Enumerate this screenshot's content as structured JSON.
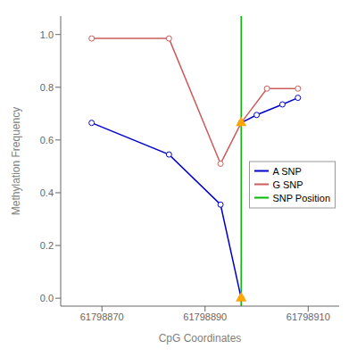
{
  "chart_data": {
    "type": "line",
    "xlabel": "CpG Coordinates",
    "ylabel": "Methylation Frequency",
    "series": [
      {
        "name": "A SNP",
        "color": "#0000CD",
        "marker": "circle",
        "segments": [
          {
            "x": [
              61798868,
              61798883,
              61798893,
              61798897
            ],
            "values": [
              0.665,
              0.545,
              0.355,
              0.0
            ]
          },
          {
            "x": [
              61798897,
              61798900,
              61798905,
              61798908
            ],
            "values": [
              0.665,
              0.695,
              0.735,
              0.76
            ]
          }
        ]
      },
      {
        "name": "G SNP",
        "color": "#CD5C5C",
        "marker": "circle",
        "segments": [
          {
            "x": [
              61798868,
              61798883,
              61798893,
              61798897
            ],
            "values": [
              0.985,
              0.985,
              0.51,
              0.665
            ]
          },
          {
            "x": [
              61798897,
              61798902,
              61798908
            ],
            "values": [
              0.665,
              0.795,
              0.795
            ]
          }
        ]
      }
    ],
    "reference_line": {
      "name": "SNP Position",
      "x": 61798897,
      "color": "#00BB00"
    },
    "highlight_points": {
      "x": [
        61798897,
        61798897
      ],
      "y": [
        0.665,
        0.0
      ],
      "color": "#FFA500",
      "marker": "triangle"
    },
    "xlim": [
      61798862,
      61798916
    ],
    "ylim": [
      -0.03,
      1.07
    ],
    "xticks": [
      61798870,
      61798890,
      61798910
    ],
    "yticks": [
      {
        "value": 0.0,
        "label": "0.0"
      },
      0.2,
      0.4,
      0.6,
      0.8,
      {
        "value": 1.0,
        "label": "1.0"
      }
    ],
    "grid": false,
    "legend": "center right"
  }
}
